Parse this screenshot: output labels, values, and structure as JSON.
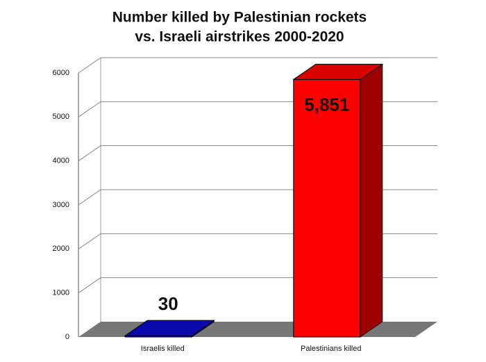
{
  "chart_data": {
    "type": "bar3d",
    "title_lines": [
      "Number killed by Palestinian rockets",
      "vs. Israeli airstrikes 2000-2020"
    ],
    "categories": [
      "Israelis killed",
      "Palestinians killed"
    ],
    "values": [
      30,
      5851
    ],
    "value_labels": [
      "30",
      "5,851"
    ],
    "colors": [
      "#0a0acc",
      "#ff0000"
    ],
    "ylim": [
      0,
      6000
    ],
    "yticks": [
      0,
      1000,
      2000,
      3000,
      4000,
      5000,
      6000
    ],
    "grid": true
  }
}
